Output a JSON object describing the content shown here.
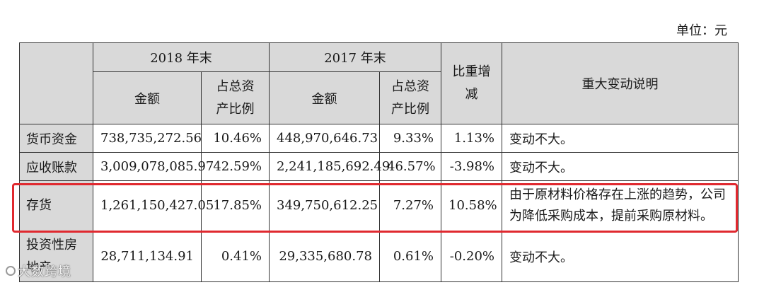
{
  "unit_note": "单位：元",
  "header": {
    "period_2018": "2018 年末",
    "period_2017": "2017 年末",
    "amount": "金额",
    "ratio_line1": "占总资",
    "ratio_line2": "产比例",
    "change_line1": "比重增",
    "change_line2": "减",
    "explanation": "重大变动说明"
  },
  "rows": [
    {
      "item": "货币资金",
      "amount_2018": "738,735,272.56",
      "ratio_2018": "10.46%",
      "amount_2017": "448,970,646.73",
      "ratio_2017": "9.33%",
      "change": "1.13%",
      "explanation": "变动不大。"
    },
    {
      "item": "应收账款",
      "amount_2018": "3,009,078,085.97",
      "ratio_2018": "42.59%",
      "amount_2017": "2,241,185,692.49",
      "ratio_2017": "46.57%",
      "change": "-3.98%",
      "explanation": "变动不大。"
    },
    {
      "item": "存货",
      "amount_2018": "1,261,150,427.05",
      "ratio_2018": "17.85%",
      "amount_2017": "349,750,612.25",
      "ratio_2017": "7.27%",
      "change": "10.58%",
      "explanation": "由于原材料价格存在上涨的趋势，公司为降低采购成本，提前采购原材料。"
    },
    {
      "item_line1": "投资性房",
      "item_line2": "地产",
      "amount_2018": "28,711,134.91",
      "ratio_2018": "0.41%",
      "amount_2017": "29,335,680.78",
      "ratio_2017": "0.61%",
      "change": "-0.20%",
      "explanation": "变动不大。"
    }
  ],
  "watermark": "大数跨境",
  "highlight_color": "#e0292f"
}
